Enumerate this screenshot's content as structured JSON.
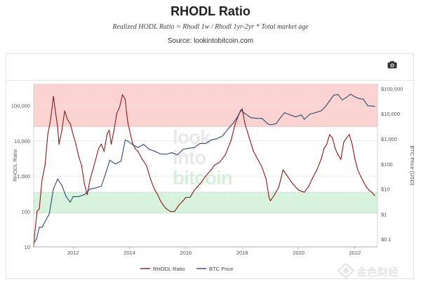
{
  "header": {
    "title": "RHODL Ratio",
    "subtitle": "Realized HODL Ratio = Rhodl 1w / Rhodl 1yr-2yr * Total market age",
    "source": "Source: lookintobitcoin.com"
  },
  "watermark": {
    "line1": "look",
    "line2": "into",
    "line3": "bitcoin"
  },
  "logo_text": "金色财经",
  "colors": {
    "rhodl": "#8b1a1a",
    "btc": "#2f4a6b",
    "top_band": "#fbd3d3",
    "bottom_band": "#d7f3dd",
    "grid": "#e4e4e4",
    "band_grid": "#bcbcbc"
  },
  "chart_data": {
    "type": "line",
    "x_ticks": [
      "2012",
      "2014",
      "2016",
      "2018",
      "2020",
      "2022"
    ],
    "xlim": [
      2010.6,
      2022.8
    ],
    "left_axis": {
      "label": "RHODL Ratio",
      "scale": "log",
      "range": [
        10,
        400000
      ],
      "ticks": [
        10,
        100,
        1000,
        10000,
        100000
      ],
      "tick_labels": [
        "10",
        "100",
        "1,000",
        "10,000",
        "100,000"
      ]
    },
    "right_axis": {
      "label": "BTC Price (USD)",
      "scale": "log",
      "range": [
        0.05,
        150000
      ],
      "ticks": [
        0.1,
        1,
        10,
        100,
        1000,
        10000,
        100000
      ],
      "tick_labels": [
        "$0.1",
        "$1",
        "$10",
        "$100",
        "$1,000",
        "$10,000",
        "$100,000"
      ]
    },
    "bands": [
      {
        "name": "top",
        "from": 25000,
        "to": 400000
      },
      {
        "name": "bottom",
        "from": 90,
        "to": 350
      }
    ],
    "series": [
      {
        "name": "RHODL Ratio",
        "axis": "left",
        "x": [
          2010.6,
          2010.65,
          2010.72,
          2010.8,
          2010.9,
          2011.0,
          2011.1,
          2011.2,
          2011.3,
          2011.38,
          2011.45,
          2011.5,
          2011.6,
          2011.7,
          2011.8,
          2011.9,
          2012.0,
          2012.1,
          2012.2,
          2012.3,
          2012.4,
          2012.5,
          2012.6,
          2012.7,
          2012.8,
          2012.9,
          2013.0,
          2013.1,
          2013.2,
          2013.28,
          2013.35,
          2013.45,
          2013.55,
          2013.65,
          2013.75,
          2013.85,
          2013.9,
          2013.95,
          2014.0,
          2014.1,
          2014.2,
          2014.3,
          2014.45,
          2014.6,
          2014.75,
          2014.9,
          2015.0,
          2015.1,
          2015.2,
          2015.3,
          2015.45,
          2015.6,
          2015.75,
          2015.9,
          2016.0,
          2016.15,
          2016.3,
          2016.5,
          2016.7,
          2016.9,
          2017.0,
          2017.2,
          2017.4,
          2017.6,
          2017.75,
          2017.9,
          2018.0,
          2018.1,
          2018.25,
          2018.4,
          2018.55,
          2018.7,
          2018.85,
          2018.95,
          2019.0,
          2019.15,
          2019.3,
          2019.45,
          2019.6,
          2019.8,
          2020.0,
          2020.2,
          2020.35,
          2020.5,
          2020.65,
          2020.8,
          2020.9,
          2021.0,
          2021.1,
          2021.2,
          2021.3,
          2021.4,
          2021.5,
          2021.6,
          2021.7,
          2021.8,
          2021.9,
          2022.0,
          2022.1,
          2022.2,
          2022.3,
          2022.4,
          2022.5,
          2022.6,
          2022.7
        ],
        "values": [
          10,
          30,
          100,
          120,
          800,
          2000,
          15000,
          40000,
          180000,
          60000,
          25000,
          8000,
          20000,
          70000,
          40000,
          30000,
          15000,
          8000,
          3500,
          2000,
          600,
          300,
          800,
          1500,
          3000,
          6000,
          8000,
          5000,
          15000,
          20000,
          8000,
          20000,
          60000,
          90000,
          200000,
          150000,
          60000,
          30000,
          20000,
          9000,
          6000,
          5000,
          3000,
          2000,
          800,
          400,
          300,
          200,
          150,
          120,
          100,
          100,
          150,
          200,
          250,
          250,
          400,
          600,
          1000,
          1500,
          2000,
          2500,
          4000,
          10000,
          30000,
          60000,
          80000,
          30000,
          12000,
          5000,
          3000,
          1800,
          800,
          250,
          200,
          300,
          500,
          1500,
          1000,
          600,
          400,
          350,
          500,
          900,
          1500,
          3000,
          6000,
          8000,
          15000,
          12000,
          6000,
          4000,
          3000,
          9000,
          12000,
          15000,
          8000,
          3000,
          1500,
          1000,
          700,
          500,
          400,
          350,
          280
        ]
      },
      {
        "name": "BTC Price",
        "axis": "right",
        "x": [
          2010.6,
          2010.7,
          2010.8,
          2010.9,
          2011.0,
          2011.15,
          2011.3,
          2011.45,
          2011.6,
          2011.75,
          2011.9,
          2012.0,
          2012.2,
          2012.4,
          2012.6,
          2012.8,
          2013.0,
          2013.15,
          2013.3,
          2013.5,
          2013.7,
          2013.85,
          2013.95,
          2014.1,
          2014.3,
          2014.5,
          2014.7,
          2014.9,
          2015.1,
          2015.3,
          2015.5,
          2015.7,
          2015.9,
          2016.1,
          2016.3,
          2016.5,
          2016.7,
          2016.9,
          2017.1,
          2017.3,
          2017.5,
          2017.7,
          2017.85,
          2017.95,
          2018.1,
          2018.3,
          2018.5,
          2018.7,
          2018.9,
          2019.0,
          2019.2,
          2019.4,
          2019.5,
          2019.7,
          2019.9,
          2020.1,
          2020.2,
          2020.4,
          2020.6,
          2020.8,
          2020.95,
          2021.1,
          2021.25,
          2021.4,
          2021.55,
          2021.7,
          2021.85,
          2022.0,
          2022.15,
          2022.3,
          2022.45,
          2022.6,
          2022.7
        ],
        "values": [
          0.07,
          0.1,
          0.3,
          0.3,
          0.5,
          1,
          10,
          25,
          14,
          5,
          3,
          5,
          5,
          6,
          10,
          11,
          13,
          40,
          140,
          100,
          130,
          900,
          800,
          600,
          450,
          600,
          380,
          320,
          250,
          240,
          280,
          230,
          380,
          420,
          450,
          650,
          650,
          900,
          1000,
          1300,
          2500,
          4500,
          8000,
          14000,
          10000,
          7000,
          6500,
          6500,
          4000,
          3600,
          4000,
          8000,
          11000,
          9000,
          7500,
          9000,
          6000,
          9500,
          11000,
          13000,
          19000,
          32000,
          55000,
          58000,
          35000,
          45000,
          60000,
          47000,
          40000,
          38000,
          21000,
          20000,
          19500
        ]
      }
    ]
  },
  "legend": {
    "items": [
      {
        "label": "RHODL Ratio",
        "color": "#8b1a1a"
      },
      {
        "label": "BTC Price",
        "color": "#2f4a6b"
      }
    ]
  }
}
